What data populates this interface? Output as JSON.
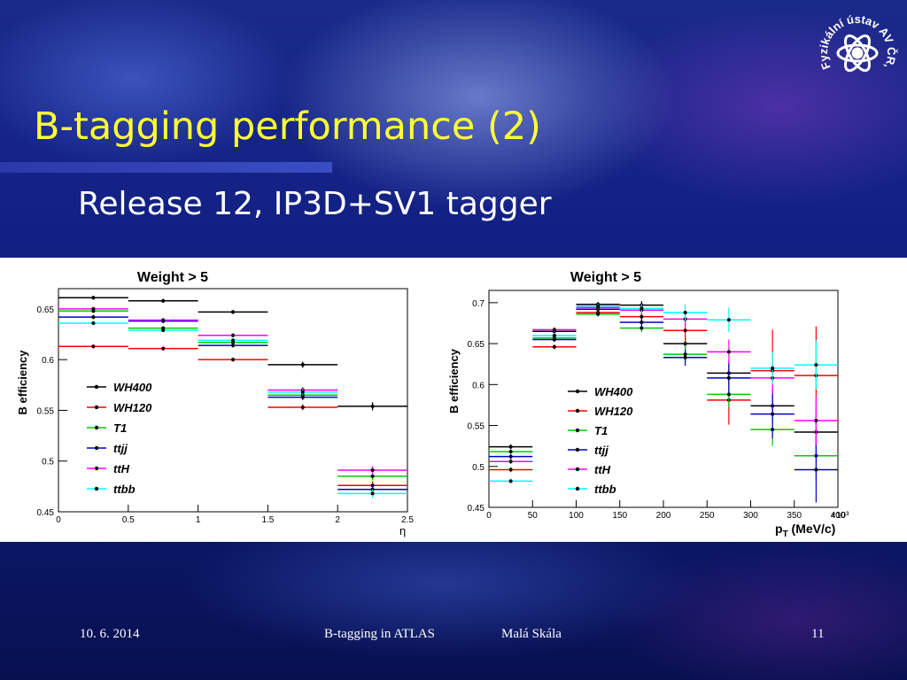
{
  "slide": {
    "title": "B-tagging performance (2)",
    "subtitle": "Release 12, IP3D+SV1 tagger",
    "footer": {
      "date": "10. 6. 2014",
      "center": "B-tagging in ATLAS",
      "author": "Malá Skála",
      "page": "11"
    },
    "logo_text": "Fyzikální ústav AV ČR, v.v.i."
  },
  "colors": {
    "title": "#ffff33",
    "WH400": "#000000",
    "WH120": "#ff0000",
    "T1": "#00cc00",
    "ttjj": "#0000cc",
    "ttH": "#ff00ff",
    "ttbb": "#00ffff"
  },
  "chart_data": [
    {
      "type": "scatter",
      "title": "Weight > 5",
      "xlabel": "η",
      "ylabel": "B efficiency",
      "xlim": [
        0,
        2.5
      ],
      "ylim": [
        0.45,
        0.67
      ],
      "xticks": [
        "0",
        "0.5",
        "1",
        "1.5",
        "2",
        "2.5"
      ],
      "yticks": [
        "0.45",
        "0.5",
        "0.55",
        "0.6",
        "0.65"
      ],
      "legend": "left",
      "bins": [
        [
          0,
          0.5
        ],
        [
          0.5,
          1
        ],
        [
          1,
          1.5
        ],
        [
          1.5,
          2
        ],
        [
          2,
          2.5
        ]
      ],
      "series": [
        {
          "name": "WH400",
          "values": [
            0.661,
            0.658,
            0.647,
            0.595,
            0.554
          ],
          "err": [
            0.002,
            0.002,
            0.002,
            0.003,
            0.004
          ]
        },
        {
          "name": "WH120",
          "values": [
            0.613,
            0.611,
            0.6,
            0.553,
            0.476
          ],
          "err": [
            0.002,
            0.002,
            0.002,
            0.003,
            0.004
          ]
        },
        {
          "name": "T1",
          "values": [
            0.648,
            0.631,
            0.617,
            0.565,
            0.485
          ],
          "err": [
            0.002,
            0.002,
            0.002,
            0.003,
            0.004
          ]
        },
        {
          "name": "ttjj",
          "values": [
            0.642,
            0.638,
            0.614,
            0.563,
            0.472
          ],
          "err": [
            0.002,
            0.002,
            0.002,
            0.003,
            0.004
          ]
        },
        {
          "name": "ttH",
          "values": [
            0.65,
            0.639,
            0.624,
            0.57,
            0.491
          ],
          "err": [
            0.002,
            0.002,
            0.002,
            0.003,
            0.004
          ]
        },
        {
          "name": "ttbb",
          "values": [
            0.636,
            0.629,
            0.619,
            0.568,
            0.468
          ],
          "err": [
            0.002,
            0.002,
            0.002,
            0.003,
            0.004
          ]
        }
      ]
    },
    {
      "type": "scatter",
      "title": "Weight > 5",
      "xlabel": "p",
      "xlabel_sub": "T",
      "xlabel_unit": "(MeV/c)",
      "x_multiplier": "×10³",
      "ylabel": "B efficiency",
      "xlim": [
        0,
        400
      ],
      "ylim": [
        0.45,
        0.715
      ],
      "xticks": [
        "0",
        "50",
        "100",
        "150",
        "200",
        "250",
        "300",
        "350",
        "400"
      ],
      "yticks": [
        "0.45",
        "0.5",
        "0.55",
        "0.6",
        "0.65",
        "0.7"
      ],
      "legend": "center",
      "bins": [
        [
          0,
          50
        ],
        [
          50,
          100
        ],
        [
          100,
          150
        ],
        [
          150,
          200
        ],
        [
          200,
          250
        ],
        [
          250,
          300
        ],
        [
          300,
          350
        ],
        [
          350,
          400
        ]
      ],
      "series": [
        {
          "name": "WH400",
          "values": [
            0.524,
            0.665,
            0.698,
            0.697,
            0.65,
            0.614,
            0.574,
            0.542
          ],
          "err": [
            0.003,
            0.003,
            0.003,
            0.005,
            0.01,
            0.015,
            0.02,
            0.03
          ]
        },
        {
          "name": "WH120",
          "values": [
            0.496,
            0.646,
            0.688,
            0.683,
            0.666,
            0.581,
            0.617,
            0.611
          ],
          "err": [
            0.003,
            0.003,
            0.003,
            0.006,
            0.015,
            0.03,
            0.05,
            0.06
          ]
        },
        {
          "name": "T1",
          "values": [
            0.518,
            0.657,
            0.686,
            0.669,
            0.637,
            0.588,
            0.545,
            0.513
          ],
          "err": [
            0.003,
            0.003,
            0.003,
            0.005,
            0.01,
            0.015,
            0.02,
            0.03
          ]
        },
        {
          "name": "ttjj",
          "values": [
            0.512,
            0.655,
            0.692,
            0.676,
            0.633,
            0.608,
            0.564,
            0.496
          ],
          "err": [
            0.003,
            0.003,
            0.003,
            0.005,
            0.01,
            0.02,
            0.03,
            0.04
          ]
        },
        {
          "name": "ttH",
          "values": [
            0.506,
            0.667,
            0.694,
            0.691,
            0.68,
            0.64,
            0.608,
            0.556
          ],
          "err": [
            0.003,
            0.003,
            0.003,
            0.005,
            0.01,
            0.015,
            0.02,
            0.03
          ]
        },
        {
          "name": "ttbb",
          "values": [
            0.482,
            0.66,
            0.696,
            0.693,
            0.688,
            0.679,
            0.62,
            0.624
          ],
          "err": [
            0.003,
            0.003,
            0.003,
            0.005,
            0.01,
            0.015,
            0.02,
            0.03
          ]
        }
      ]
    }
  ]
}
